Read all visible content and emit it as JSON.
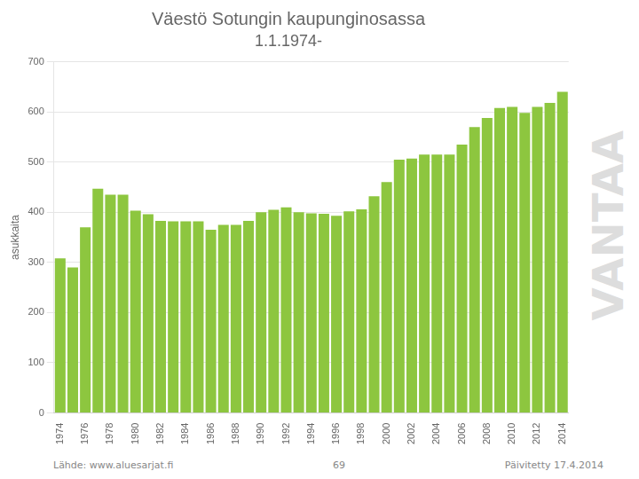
{
  "chart_data": {
    "type": "bar",
    "title": "Väestö Sotungin kaupunginosassa",
    "subtitle": "1.1.1974-",
    "y_label": "asukkaita",
    "categories": [
      "1974",
      null,
      "1976",
      null,
      "1978",
      null,
      "1980",
      null,
      "1982",
      null,
      "1984",
      null,
      "1986",
      null,
      "1988",
      null,
      "1990",
      null,
      "1992",
      null,
      "1994",
      null,
      "1996",
      null,
      "1998",
      null,
      "2000",
      null,
      "2002",
      null,
      "2004",
      null,
      "2006",
      null,
      "2008",
      null,
      "2010",
      null,
      "2012",
      null,
      "2014"
    ],
    "values": [
      308,
      290,
      370,
      447,
      435,
      435,
      403,
      396,
      383,
      382,
      382,
      382,
      365,
      375,
      375,
      383,
      400,
      405,
      410,
      400,
      398,
      397,
      393,
      402,
      406,
      432,
      460,
      505,
      507,
      515,
      515,
      515,
      535,
      570,
      588,
      608,
      610,
      598,
      610,
      618,
      640
    ],
    "color": "#8dc63f",
    "ylim": [
      0,
      700
    ],
    "yticks": [
      0,
      100,
      200,
      300,
      400,
      500,
      600,
      700
    ],
    "grid": true,
    "annotations": [
      "Lähde: www.aluesarjat.fi",
      "69",
      "Päivitetty 17.4.2014",
      "VANTAA"
    ]
  }
}
